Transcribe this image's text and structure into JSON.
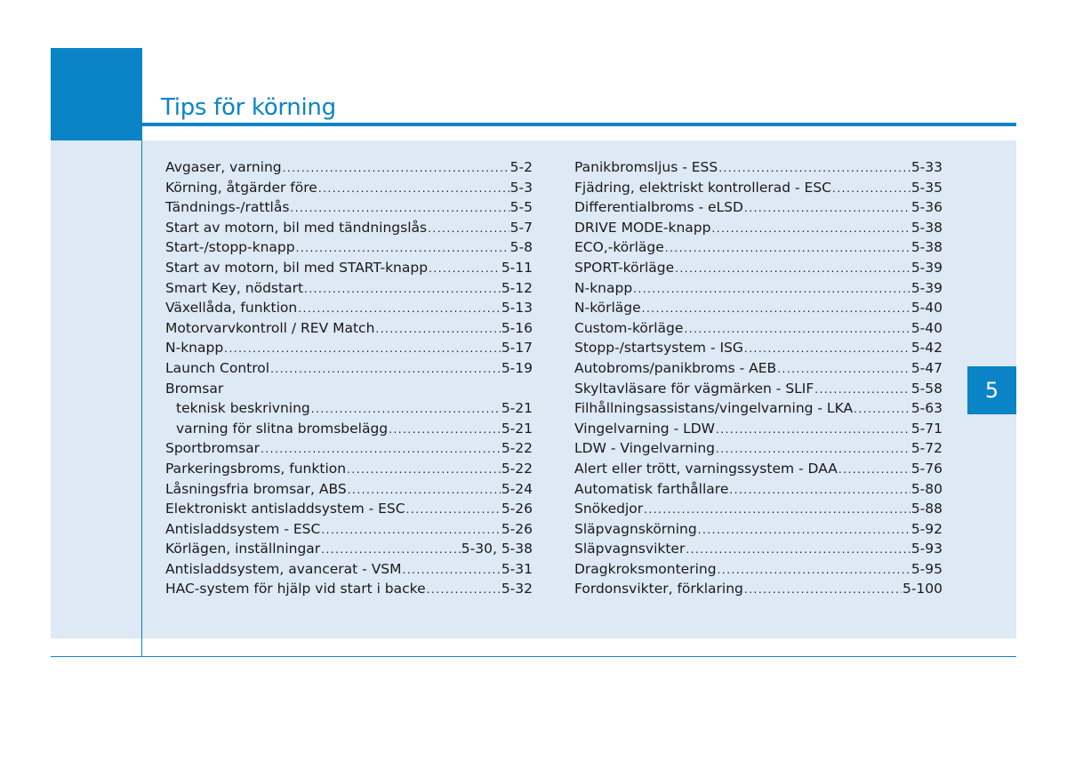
{
  "header": {
    "title": "Tips för körning"
  },
  "chapter_tab": "5",
  "colors": {
    "accent": "#0a84c6",
    "panel": "#dde9f5"
  },
  "index_left": [
    {
      "label": "Avgaser, varning",
      "page": "5-2"
    },
    {
      "label": "Körning, åtgärder före",
      "page": "5-3"
    },
    {
      "label": "Tändnings-/rattlås",
      "page": "5-5"
    },
    {
      "label": "Start av motorn, bil med tändningslås",
      "page": "5-7"
    },
    {
      "label": "Start-/stopp-knapp",
      "page": "5-8"
    },
    {
      "label": "Start av motorn, bil med START-knapp",
      "page": "5-11"
    },
    {
      "label": "Smart Key, nödstart",
      "page": "5-12"
    },
    {
      "label": "Växellåda, funktion",
      "page": "5-13"
    },
    {
      "label": "Motorvarvkontroll / REV Match",
      "page": "5-16"
    },
    {
      "label": "N-knapp",
      "page": "5-17"
    },
    {
      "label": "Launch Control",
      "page": "5-19"
    },
    {
      "label": "Bromsar",
      "page": ""
    },
    {
      "label": "teknisk beskrivning",
      "page": "5-21"
    },
    {
      "label": "varning för slitna bromsbelägg",
      "page": "5-21"
    },
    {
      "label": "Sportbromsar",
      "page": "5-22"
    },
    {
      "label": "Parkeringsbroms, funktion",
      "page": "5-22"
    },
    {
      "label": "Låsningsfria bromsar, ABS",
      "page": "5-24"
    },
    {
      "label": "Elektroniskt antisladdsystem - ESC",
      "page": "5-26"
    },
    {
      "label": "Antisladdsystem - ESC",
      "page": "5-26"
    },
    {
      "label": "Körlägen, inställningar",
      "page": "5-30, 5-38"
    },
    {
      "label": "Antisladdsystem, avancerat - VSM",
      "page": "5-31"
    },
    {
      "label": "HAC-system för hjälp vid start i backe",
      "page": "5-32"
    }
  ],
  "index_right": [
    {
      "label": "Panikbromsljus - ESS",
      "page": "5-33"
    },
    {
      "label": "Fjädring, elektriskt kontrollerad - ESC",
      "page": "5-35"
    },
    {
      "label": "Differentialbroms - eLSD",
      "page": "5-36"
    },
    {
      "label": "DRIVE MODE-knapp",
      "page": "5-38"
    },
    {
      "label": "ECO,-körläge",
      "page": "5-38"
    },
    {
      "label": "SPORT-körläge",
      "page": "5-39"
    },
    {
      "label": "N-knapp",
      "page": "5-39"
    },
    {
      "label": "N-körläge",
      "page": "5-40"
    },
    {
      "label": "Custom-körläge",
      "page": "5-40"
    },
    {
      "label": "Stopp-/startsystem - ISG",
      "page": "5-42"
    },
    {
      "label": "Autobroms/panikbroms - AEB",
      "page": "5-47"
    },
    {
      "label": "Skyltavläsare för vägmärken - SLIF",
      "page": "5-58"
    },
    {
      "label": "Filhållningsassistans/vingelvarning - LKA",
      "page": "5-63"
    },
    {
      "label": "Vingelvarning - LDW",
      "page": "5-71"
    },
    {
      "label": "LDW - Vingelvarning",
      "page": "5-72"
    },
    {
      "label": "Alert eller trött, varningssystem - DAA",
      "page": "5-76"
    },
    {
      "label": "Automatisk farthållare",
      "page": "5-80"
    },
    {
      "label": "Snökedjor",
      "page": "5-88"
    },
    {
      "label": "Släpvagnskörning",
      "page": "5-92"
    },
    {
      "label": "Släpvagnsvikter",
      "page": "5-93"
    },
    {
      "label": "Dragkroksmontering",
      "page": "5-95"
    },
    {
      "label": "Fordonsvikter, förklaring",
      "page": "5-100"
    }
  ]
}
